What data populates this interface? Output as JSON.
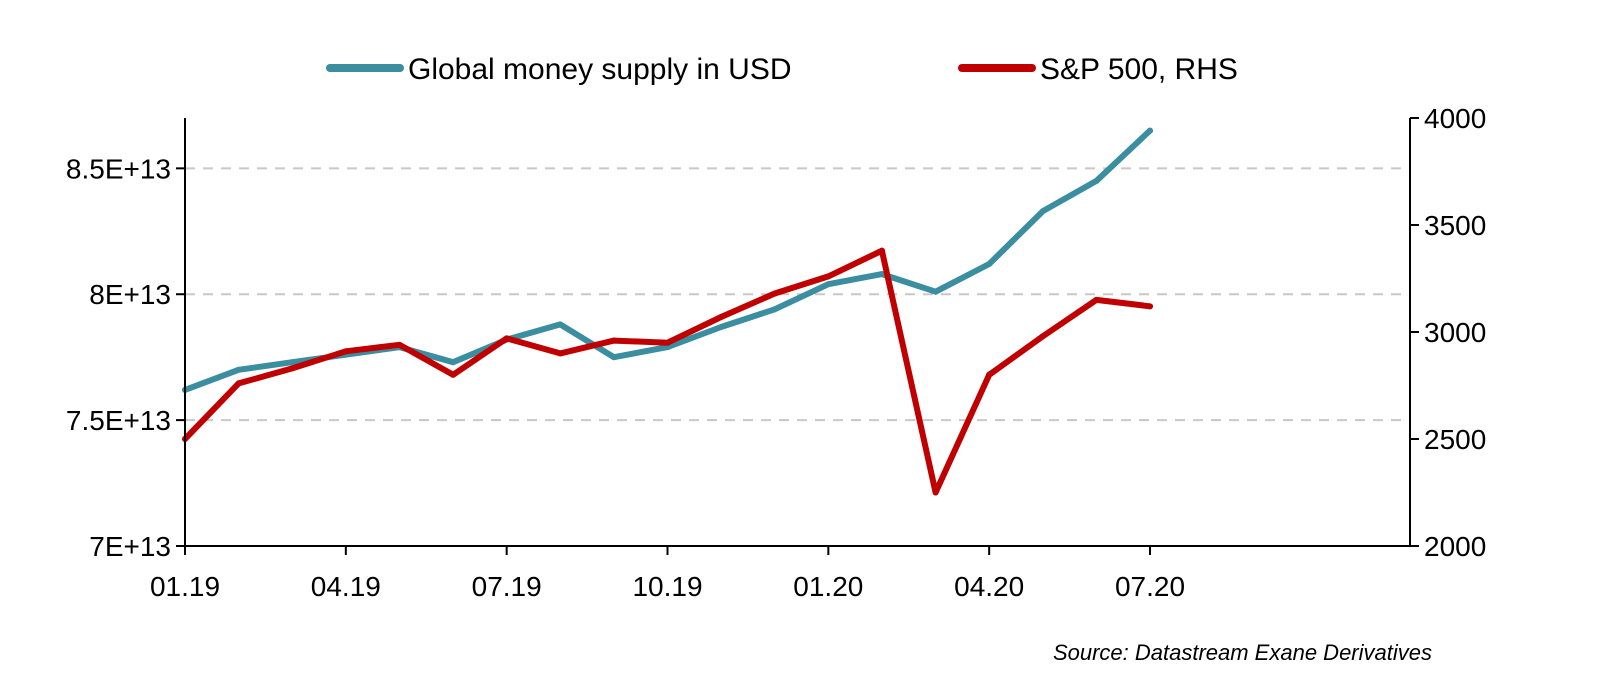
{
  "chart_data": {
    "type": "line",
    "title": "",
    "x_tick_labels": [
      "01.19",
      "04.19",
      "07.19",
      "10.19",
      "01.20",
      "04.20",
      "07.20"
    ],
    "x_range": [
      "2019-01",
      "2020-07"
    ],
    "y_left": {
      "tick_labels": [
        "7E+13",
        "7.5E+13",
        "8E+13",
        "8.5E+13"
      ],
      "ticks": [
        70000000000000,
        75000000000000,
        80000000000000,
        85000000000000
      ],
      "range": [
        70000000000000,
        87000000000000
      ]
    },
    "y_right": {
      "tick_labels": [
        "2000",
        "2500",
        "3000",
        "3500",
        "4000"
      ],
      "ticks": [
        2000,
        2500,
        3000,
        3500,
        4000
      ],
      "range": [
        2000,
        4000
      ]
    },
    "grid": "horizontal dashed",
    "legend_position": "top-center",
    "x": [
      "2019-01",
      "2019-02",
      "2019-03",
      "2019-04",
      "2019-05",
      "2019-06",
      "2019-07",
      "2019-08",
      "2019-09",
      "2019-10",
      "2019-11",
      "2019-12",
      "2020-01",
      "2020-02",
      "2020-03",
      "2020-04",
      "2020-05",
      "2020-06",
      "2020-07"
    ],
    "series": [
      {
        "name": "Global money supply in USD",
        "axis": "left",
        "color": "#3A8EA0",
        "values": [
          76200000000000,
          77000000000000,
          77300000000000,
          77600000000000,
          77900000000000,
          77300000000000,
          78200000000000,
          78800000000000,
          77500000000000,
          77900000000000,
          78700000000000,
          79400000000000,
          80400000000000,
          80800000000000,
          80100000000000,
          81200000000000,
          83300000000000,
          84500000000000,
          86500000000000
        ]
      },
      {
        "name": "S&P 500, RHS",
        "axis": "right",
        "color": "#C00000",
        "values": [
          2500,
          2760,
          2830,
          2910,
          2940,
          2800,
          2970,
          2900,
          2960,
          2950,
          3070,
          3180,
          3260,
          3380,
          2250,
          2800,
          2980,
          3150,
          3120
        ]
      }
    ],
    "source": "Source: Datastream Exane Derivatives"
  }
}
